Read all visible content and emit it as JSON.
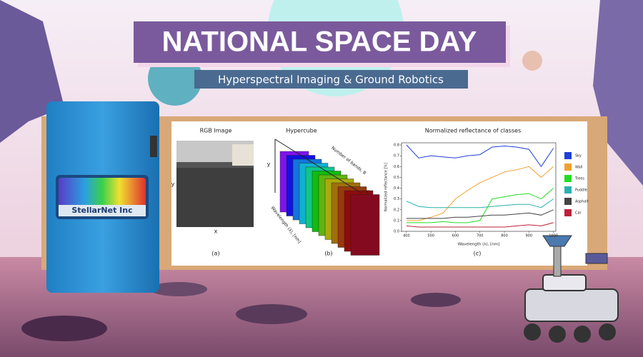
{
  "header": {
    "title": "NATIONAL SPACE DAY",
    "subtitle": "Hyperspectral Imaging & Ground Robotics"
  },
  "device": {
    "brand": "StellarNet Inc"
  },
  "figure": {
    "rgb": {
      "title": "RGB Image",
      "x_label": "x",
      "y_label": "y",
      "caption": "(a)"
    },
    "hypercube": {
      "title": "Hypercube",
      "x_label": "x",
      "y_label": "y",
      "wavelength_label": "Wavelength (λ), [nm]",
      "bands_label": "Number of bands, B",
      "caption": "(b)"
    },
    "reflectance": {
      "caption": "(c)"
    }
  },
  "chart_data": {
    "type": "line",
    "title": "Normalized reflectance of classes",
    "x_label": "Wavelength (λ), [nm]",
    "y_label": "Normalized reflectance [%]",
    "x": [
      400,
      450,
      500,
      550,
      600,
      650,
      700,
      750,
      800,
      850,
      900,
      950,
      1000
    ],
    "series": [
      {
        "name": "Sky",
        "color": "#1f3fd6",
        "values": [
          0.8,
          0.68,
          0.7,
          0.69,
          0.68,
          0.7,
          0.71,
          0.78,
          0.79,
          0.78,
          0.76,
          0.6,
          0.77
        ]
      },
      {
        "name": "Wall",
        "color": "#f0a030",
        "values": [
          0.1,
          0.1,
          0.13,
          0.17,
          0.3,
          0.38,
          0.45,
          0.5,
          0.55,
          0.57,
          0.6,
          0.5,
          0.6
        ]
      },
      {
        "name": "Trees",
        "color": "#22dd22",
        "values": [
          0.08,
          0.08,
          0.08,
          0.09,
          0.08,
          0.08,
          0.1,
          0.3,
          0.32,
          0.34,
          0.35,
          0.3,
          0.4
        ]
      },
      {
        "name": "Puddle",
        "color": "#2ab0b0",
        "values": [
          0.28,
          0.23,
          0.22,
          0.22,
          0.22,
          0.22,
          0.22,
          0.23,
          0.24,
          0.25,
          0.25,
          0.22,
          0.3
        ]
      },
      {
        "name": "Asphalt",
        "color": "#444444",
        "values": [
          0.12,
          0.12,
          0.12,
          0.12,
          0.13,
          0.13,
          0.14,
          0.15,
          0.15,
          0.16,
          0.17,
          0.15,
          0.2
        ]
      },
      {
        "name": "Car",
        "color": "#c0203a",
        "values": [
          0.05,
          0.04,
          0.04,
          0.04,
          0.04,
          0.04,
          0.04,
          0.04,
          0.04,
          0.05,
          0.06,
          0.05,
          0.08
        ]
      }
    ],
    "xlim": [
      380,
      1010
    ],
    "ylim": [
      0,
      0.82
    ],
    "xticks": [
      400,
      500,
      600,
      700,
      800,
      900,
      1000
    ],
    "yticks": [
      {
        "value": 0,
        "label": "0.0"
      },
      0.1,
      0.2,
      0.3,
      0.4,
      0.5,
      0.6,
      0.7,
      0.8
    ],
    "grid": false
  }
}
